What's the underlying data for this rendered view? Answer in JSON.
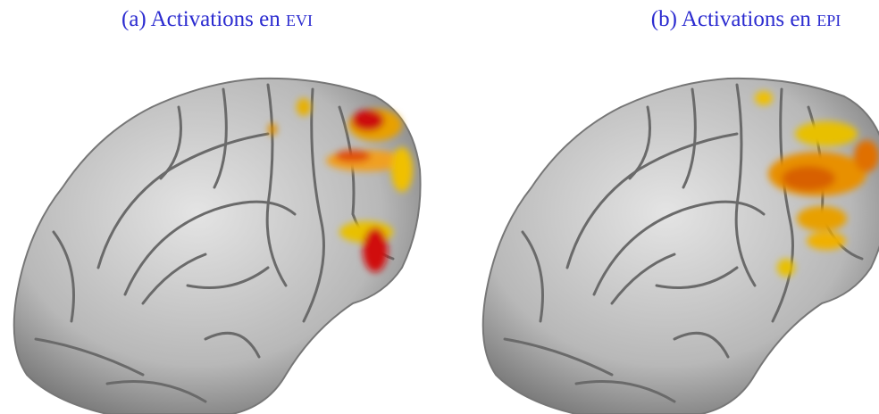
{
  "figure": {
    "panels": [
      {
        "caption": "(a) Activations en",
        "abbr": "evi"
      },
      {
        "caption": "(b) Activations en",
        "abbr": "epi"
      }
    ]
  }
}
